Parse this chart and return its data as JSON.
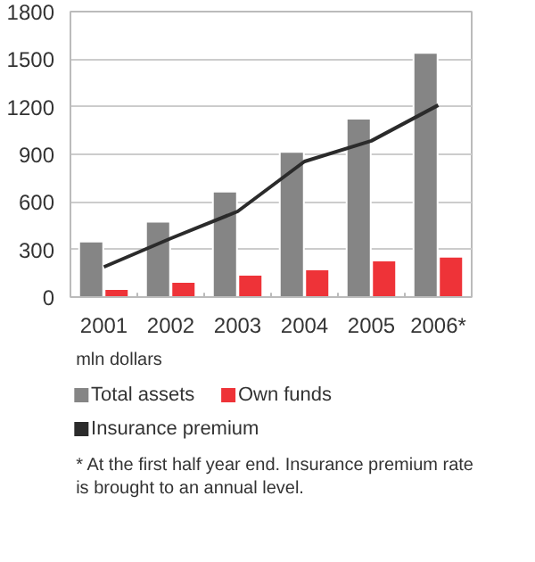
{
  "chart_data": {
    "type": "bar",
    "categories": [
      "2001",
      "2002",
      "2003",
      "2004",
      "2005",
      "2006*"
    ],
    "series": [
      {
        "name": "Total assets",
        "color": "#858585",
        "values": [
          350,
          475,
          665,
          915,
          1125,
          1540
        ]
      },
      {
        "name": "Own funds",
        "color": "#ee3338",
        "values": [
          50,
          95,
          140,
          175,
          230,
          255
        ]
      },
      {
        "name": "Insurance premium",
        "color": "#2b2b2b",
        "type": "line",
        "values": [
          190,
          370,
          540,
          855,
          985,
          1210
        ]
      }
    ],
    "ylim": [
      0,
      1800
    ],
    "yticks": [
      0,
      300,
      600,
      900,
      1200,
      1500,
      1800
    ],
    "grid": "y",
    "legend": "bottom",
    "annotations": [
      "mln dollars",
      "* At the first half year end. Insurance premium rate\nis brought to an annual level."
    ]
  }
}
